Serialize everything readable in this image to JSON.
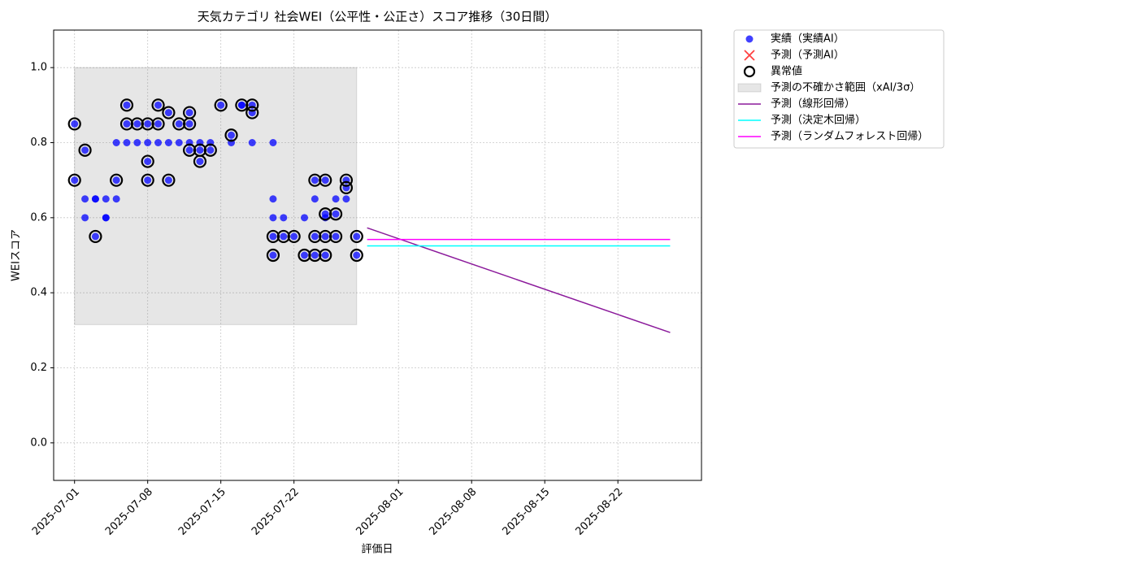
{
  "chart_data": {
    "type": "scatter",
    "title": "天気カテゴリ 社会WEI（公平性・公正さ）スコア推移（30日間）",
    "xlabel": "評価日",
    "ylabel": "WEIスコア",
    "xlim": [
      "2025-06-29",
      "2025-08-30"
    ],
    "ylim": [
      -0.1,
      1.1
    ],
    "xticks": [
      "2025-07-01",
      "2025-07-08",
      "2025-07-15",
      "2025-07-22",
      "2025-08-01",
      "2025-08-08",
      "2025-08-15",
      "2025-08-22"
    ],
    "yticks": [
      {
        "value": 0,
        "label": "0.0"
      },
      {
        "value": 0.2,
        "label": "0.2"
      },
      {
        "value": 0.4,
        "label": "0.4"
      },
      {
        "value": 0.6,
        "label": "0.6"
      },
      {
        "value": 0.8,
        "label": "0.8"
      },
      {
        "value": 1.0,
        "label": "1.0"
      }
    ],
    "grid": true,
    "legend": "outside upper right",
    "series": [
      {
        "name": "実績（実績AI）",
        "type": "scatter",
        "marker": "dot",
        "color": "#0000ff",
        "x": [
          "2025-07-01",
          "2025-07-01",
          "2025-07-02",
          "2025-07-02",
          "2025-07-02",
          "2025-07-03",
          "2025-07-03",
          "2025-07-03",
          "2025-07-04",
          "2025-07-04",
          "2025-07-04",
          "2025-07-05",
          "2025-07-05",
          "2025-07-05",
          "2025-07-06",
          "2025-07-06",
          "2025-07-06",
          "2025-07-07",
          "2025-07-07",
          "2025-07-08",
          "2025-07-08",
          "2025-07-08",
          "2025-07-08",
          "2025-07-09",
          "2025-07-09",
          "2025-07-09",
          "2025-07-10",
          "2025-07-10",
          "2025-07-10",
          "2025-07-11",
          "2025-07-11",
          "2025-07-12",
          "2025-07-12",
          "2025-07-12",
          "2025-07-12",
          "2025-07-13",
          "2025-07-13",
          "2025-07-13",
          "2025-07-14",
          "2025-07-14",
          "2025-07-15",
          "2025-07-16",
          "2025-07-16",
          "2025-07-17",
          "2025-07-17",
          "2025-07-18",
          "2025-07-18",
          "2025-07-18",
          "2025-07-20",
          "2025-07-20",
          "2025-07-20",
          "2025-07-20",
          "2025-07-20",
          "2025-07-21",
          "2025-07-21",
          "2025-07-22",
          "2025-07-23",
          "2025-07-23",
          "2025-07-24",
          "2025-07-24",
          "2025-07-24",
          "2025-07-24",
          "2025-07-25",
          "2025-07-25",
          "2025-07-25",
          "2025-07-25",
          "2025-07-25",
          "2025-07-26",
          "2025-07-26",
          "2025-07-26",
          "2025-07-27",
          "2025-07-27",
          "2025-07-27",
          "2025-07-28",
          "2025-07-28"
        ],
        "values": [
          0.85,
          0.7,
          0.78,
          0.65,
          0.6,
          0.65,
          0.65,
          0.55,
          0.6,
          0.6,
          0.65,
          0.8,
          0.7,
          0.65,
          0.8,
          0.85,
          0.9,
          0.8,
          0.85,
          0.75,
          0.7,
          0.8,
          0.85,
          0.85,
          0.8,
          0.9,
          0.7,
          0.8,
          0.88,
          0.85,
          0.8,
          0.88,
          0.78,
          0.85,
          0.8,
          0.78,
          0.75,
          0.8,
          0.78,
          0.8,
          0.9,
          0.82,
          0.8,
          0.9,
          0.9,
          0.9,
          0.8,
          0.88,
          0.8,
          0.65,
          0.6,
          0.55,
          0.5,
          0.55,
          0.6,
          0.55,
          0.5,
          0.6,
          0.7,
          0.55,
          0.5,
          0.65,
          0.61,
          0.55,
          0.5,
          0.7,
          0.6,
          0.61,
          0.55,
          0.65,
          0.7,
          0.68,
          0.65,
          0.55,
          0.5
        ]
      },
      {
        "name": "予測（予測AI）",
        "type": "scatter",
        "marker": "x",
        "color": "#ff0000",
        "x": [],
        "values": []
      },
      {
        "name": "異常値",
        "type": "scatter",
        "marker": "ring",
        "color": "#000000",
        "x": [
          "2025-07-01",
          "2025-07-01",
          "2025-07-02",
          "2025-07-03",
          "2025-07-05",
          "2025-07-06",
          "2025-07-06",
          "2025-07-07",
          "2025-07-08",
          "2025-07-08",
          "2025-07-08",
          "2025-07-09",
          "2025-07-09",
          "2025-07-10",
          "2025-07-10",
          "2025-07-11",
          "2025-07-12",
          "2025-07-12",
          "2025-07-12",
          "2025-07-13",
          "2025-07-13",
          "2025-07-14",
          "2025-07-15",
          "2025-07-16",
          "2025-07-17",
          "2025-07-18",
          "2025-07-18",
          "2025-07-20",
          "2025-07-20",
          "2025-07-21",
          "2025-07-22",
          "2025-07-23",
          "2025-07-24",
          "2025-07-24",
          "2025-07-24",
          "2025-07-25",
          "2025-07-25",
          "2025-07-25",
          "2025-07-25",
          "2025-07-26",
          "2025-07-26",
          "2025-07-27",
          "2025-07-27",
          "2025-07-28",
          "2025-07-28"
        ],
        "values": [
          0.85,
          0.7,
          0.78,
          0.55,
          0.7,
          0.85,
          0.9,
          0.85,
          0.75,
          0.7,
          0.85,
          0.85,
          0.9,
          0.7,
          0.88,
          0.85,
          0.88,
          0.78,
          0.85,
          0.78,
          0.75,
          0.78,
          0.9,
          0.82,
          0.9,
          0.9,
          0.88,
          0.55,
          0.5,
          0.55,
          0.55,
          0.5,
          0.7,
          0.55,
          0.5,
          0.61,
          0.55,
          0.5,
          0.7,
          0.61,
          0.55,
          0.7,
          0.68,
          0.55,
          0.5
        ]
      },
      {
        "name": "予測の不確かさ範囲（xAI/3σ）",
        "type": "band",
        "color": "#808080",
        "x": [
          "2025-07-01",
          "2025-07-28"
        ],
        "lower": [
          0.315,
          0.315
        ],
        "upper": [
          1.0,
          1.0
        ]
      },
      {
        "name": "予測（線形回帰）",
        "type": "line",
        "color": "#8b1a9b",
        "x": [
          "2025-07-29",
          "2025-08-27"
        ],
        "values": [
          0.573,
          0.294
        ]
      },
      {
        "name": "予測（決定木回帰）",
        "type": "line",
        "color": "#00ffff",
        "x": [
          "2025-07-29",
          "2025-08-27"
        ],
        "values": [
          0.525,
          0.525
        ]
      },
      {
        "name": "予測（ランダムフォレスト回帰）",
        "type": "line",
        "color": "#ff00ff",
        "x": [
          "2025-07-29",
          "2025-08-27"
        ],
        "values": [
          0.542,
          0.542
        ]
      }
    ]
  }
}
